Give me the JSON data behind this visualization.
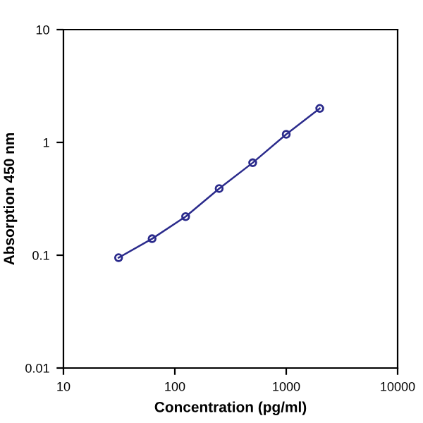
{
  "chart_data": {
    "type": "line",
    "xlabel": "Concentration (pg/ml)",
    "ylabel": "Absorption 450 nm",
    "log": "xy",
    "grid": false,
    "marker": "circle",
    "line_style": "solid",
    "x": [
      31.25,
      62.5,
      125,
      250,
      500,
      1000,
      2000
    ],
    "series": [
      {
        "color": "#2b2b8c",
        "values": [
          0.095,
          0.14,
          0.22,
          0.39,
          0.66,
          1.18,
          2.0
        ]
      }
    ],
    "xlim": [
      10,
      10000
    ],
    "xticks": [
      10,
      100,
      1000,
      10000
    ],
    "ylim": [
      0.01,
      10
    ],
    "yticks": [
      0.01,
      0.1,
      1,
      10
    ]
  }
}
